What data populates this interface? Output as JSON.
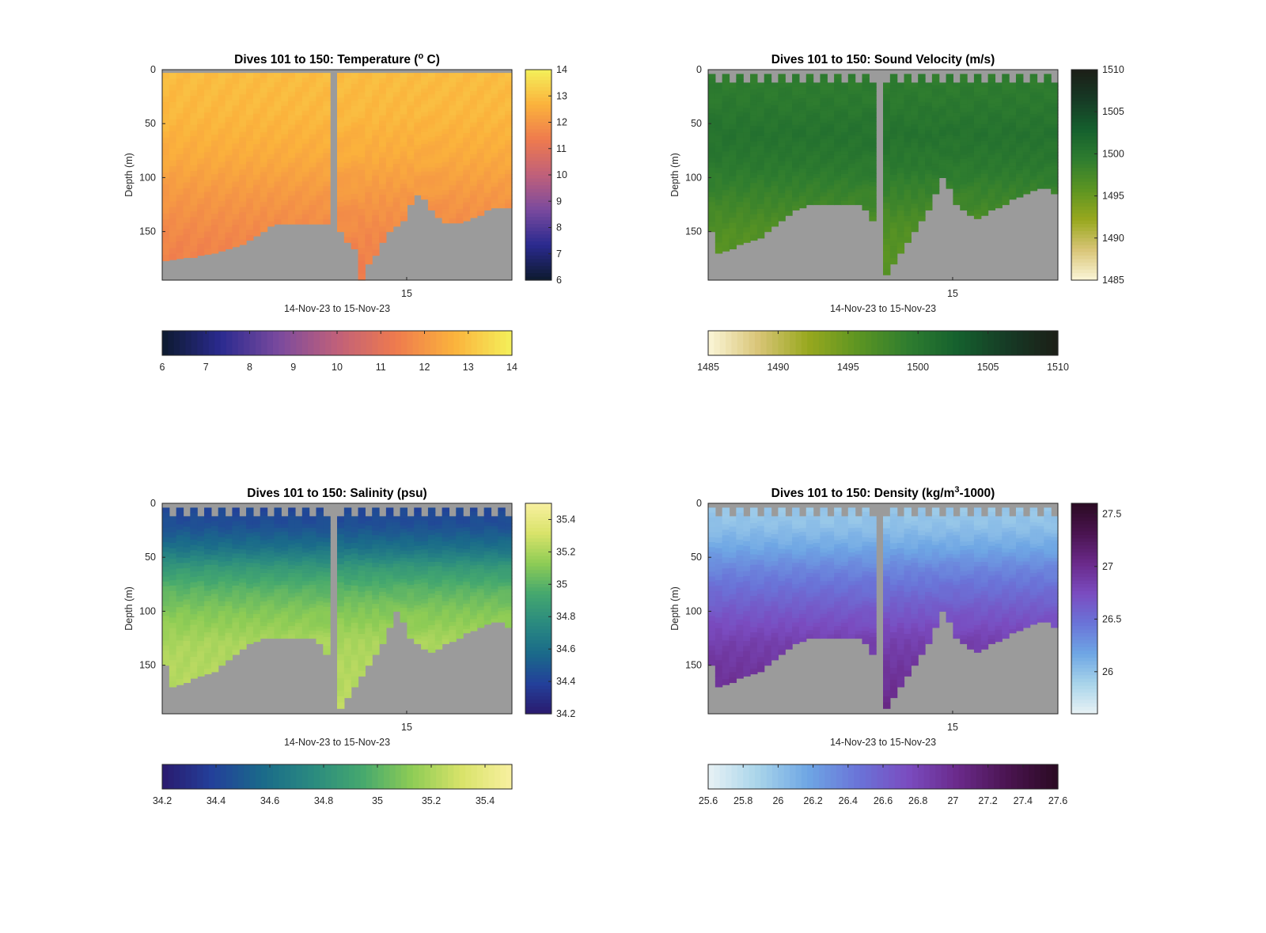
{
  "chart_data": [
    {
      "type": "heatmap",
      "title": "Dives 101 to 150: Temperature (",
      "title_sup": "o",
      "title_tail": " C)",
      "xlabel": "14-Nov-23 to 15-Nov-23",
      "ylabel": "Depth (m)",
      "x_tick_labels": [
        "15"
      ],
      "y_ticks": [
        0,
        50,
        100,
        150
      ],
      "ylim": [
        195,
        0
      ],
      "clim": [
        6,
        14
      ],
      "colormap": [
        "#0d1a2e",
        "#2a2a8f",
        "#7a4a9e",
        "#c0607a",
        "#ee7a4e",
        "#fbb23c",
        "#f4f05a"
      ],
      "colorbar_ticks_vertical": [
        6,
        7,
        8,
        9,
        10,
        11,
        12,
        13,
        14
      ],
      "colorbar_ticks_horizontal": [
        6,
        7,
        8,
        9,
        10,
        11,
        12,
        13,
        14
      ],
      "dives": 50,
      "gap_dive": 24,
      "bottom_depth_m": [
        177,
        176,
        175,
        174,
        174,
        172,
        171,
        170,
        168,
        166,
        164,
        162,
        158,
        154,
        150,
        145,
        143,
        143,
        143,
        143,
        143,
        143,
        143,
        143,
        143,
        150,
        160,
        166,
        195,
        180,
        172,
        160,
        150,
        145,
        140,
        125,
        116,
        120,
        130,
        137,
        142,
        142,
        142,
        140,
        137,
        135,
        130,
        128,
        128,
        128
      ],
      "top_gap_m": [
        3,
        3,
        3,
        3,
        3,
        3,
        3,
        3,
        3,
        3,
        3,
        3,
        3,
        3,
        3,
        3,
        3,
        3,
        3,
        3,
        3,
        3,
        3,
        3,
        3,
        3,
        3,
        3,
        3,
        3,
        3,
        3,
        3,
        3,
        3,
        3,
        3,
        3,
        3,
        3,
        3,
        3,
        3,
        3,
        3,
        3,
        3,
        3,
        3,
        3
      ],
      "profile_depth_m": [
        0,
        40,
        80,
        120,
        160,
        195
      ],
      "profile_values": [
        12.9,
        12.8,
        12.5,
        12.0,
        11.6,
        11.4
      ]
    },
    {
      "type": "heatmap",
      "title": "Dives 101 to 150: Sound Velocity (m/s)",
      "xlabel": "14-Nov-23 to 15-Nov-23",
      "ylabel": "Depth (m)",
      "x_tick_labels": [
        "15"
      ],
      "y_ticks": [
        0,
        50,
        100,
        150
      ],
      "ylim": [
        195,
        0
      ],
      "clim": [
        1485,
        1510
      ],
      "colormap": [
        "#fbf6d8",
        "#d9c577",
        "#98a81e",
        "#5c9522",
        "#2f7d2f",
        "#15602e",
        "#163a25",
        "#1c1e17"
      ],
      "colorbar_ticks_vertical": [
        1485,
        1490,
        1495,
        1500,
        1505,
        1510
      ],
      "colorbar_ticks_horizontal": [
        1485,
        1490,
        1495,
        1500,
        1505,
        1510
      ],
      "dives": 50,
      "gap_dive": 24,
      "bottom_depth_m": [
        150,
        170,
        168,
        166,
        162,
        160,
        158,
        156,
        150,
        145,
        140,
        135,
        130,
        128,
        125,
        125,
        125,
        125,
        125,
        125,
        125,
        125,
        130,
        140,
        160,
        190,
        180,
        170,
        160,
        150,
        140,
        130,
        115,
        100,
        110,
        125,
        130,
        135,
        138,
        135,
        130,
        128,
        125,
        120,
        118,
        115,
        112,
        110,
        110,
        115
      ],
      "top_gap_m": [
        4,
        12,
        4,
        12,
        4,
        12,
        4,
        12,
        4,
        12,
        4,
        12,
        4,
        12,
        4,
        12,
        4,
        12,
        4,
        12,
        4,
        12,
        4,
        12,
        4,
        12,
        4,
        12,
        4,
        12,
        4,
        12,
        4,
        12,
        4,
        12,
        4,
        12,
        4,
        12,
        4,
        12,
        4,
        12,
        4,
        12,
        4,
        12,
        4,
        12
      ],
      "profile_depth_m": [
        0,
        30,
        60,
        90,
        120,
        150,
        195
      ],
      "profile_values": [
        1499.2,
        1499.8,
        1500.6,
        1499.8,
        1498.2,
        1496.5,
        1495.8
      ]
    },
    {
      "type": "heatmap",
      "title": "Dives 101 to 150: Salinity (psu)",
      "xlabel": "14-Nov-23 to 15-Nov-23",
      "ylabel": "Depth (m)",
      "x_tick_labels": [
        "15"
      ],
      "y_ticks": [
        0,
        50,
        100,
        150
      ],
      "ylim": [
        195,
        0
      ],
      "clim": [
        34.2,
        35.5
      ],
      "colormap": [
        "#2a1a6e",
        "#23409a",
        "#1a6a8a",
        "#2a8a80",
        "#45a86e",
        "#8ecc55",
        "#d9e36a",
        "#f8f0a0"
      ],
      "colorbar_ticks_vertical": [
        34.2,
        34.4,
        34.6,
        34.8,
        35,
        35.2,
        35.4
      ],
      "colorbar_ticks_horizontal": [
        34.2,
        34.4,
        34.6,
        34.8,
        35,
        35.2,
        35.4
      ],
      "dives": 50,
      "gap_dive": 24,
      "bottom_depth_m": [
        150,
        170,
        168,
        166,
        162,
        160,
        158,
        156,
        150,
        145,
        140,
        135,
        130,
        128,
        125,
        125,
        125,
        125,
        125,
        125,
        125,
        125,
        130,
        140,
        160,
        190,
        180,
        170,
        160,
        150,
        140,
        130,
        115,
        100,
        110,
        125,
        130,
        135,
        138,
        135,
        130,
        128,
        125,
        120,
        118,
        115,
        112,
        110,
        110,
        115
      ],
      "top_gap_m": [
        4,
        12,
        4,
        12,
        4,
        12,
        4,
        12,
        4,
        12,
        4,
        12,
        4,
        12,
        4,
        12,
        4,
        12,
        4,
        12,
        4,
        12,
        4,
        12,
        4,
        12,
        4,
        12,
        4,
        12,
        4,
        12,
        4,
        12,
        4,
        12,
        4,
        12,
        4,
        12,
        4,
        12,
        4,
        12,
        4,
        12,
        4,
        12,
        4,
        12
      ],
      "profile_depth_m": [
        0,
        20,
        40,
        60,
        80,
        100,
        130,
        195
      ],
      "profile_values": [
        34.4,
        34.45,
        34.6,
        34.85,
        35.0,
        35.1,
        35.2,
        35.25
      ]
    },
    {
      "type": "heatmap",
      "title": "Dives 101 to 150: Density (kg/m",
      "title_sup": "3",
      "title_tail": "-1000)",
      "xlabel": "14-Nov-23 to 15-Nov-23",
      "ylabel": "Depth (m)",
      "x_tick_labels": [
        "15"
      ],
      "y_ticks": [
        0,
        50,
        100,
        150
      ],
      "ylim": [
        195,
        0
      ],
      "clim": [
        25.6,
        27.6
      ],
      "colormap": [
        "#e8f2f5",
        "#a8d4ea",
        "#6ea6e4",
        "#6a74d8",
        "#7a4cc0",
        "#6a2a8a",
        "#4a1450",
        "#2a0a22"
      ],
      "colorbar_ticks_vertical": [
        26,
        26.5,
        27,
        27.5
      ],
      "colorbar_ticks_horizontal": [
        25.6,
        25.8,
        26,
        26.2,
        26.4,
        26.6,
        26.8,
        27,
        27.2,
        27.4,
        27.6
      ],
      "dives": 50,
      "gap_dive": 24,
      "bottom_depth_m": [
        150,
        170,
        168,
        166,
        162,
        160,
        158,
        156,
        150,
        145,
        140,
        135,
        130,
        128,
        125,
        125,
        125,
        125,
        125,
        125,
        125,
        125,
        130,
        140,
        160,
        190,
        180,
        170,
        160,
        150,
        140,
        130,
        115,
        100,
        110,
        125,
        130,
        135,
        138,
        135,
        130,
        128,
        125,
        120,
        118,
        115,
        112,
        110,
        110,
        115
      ],
      "top_gap_m": [
        4,
        12,
        4,
        12,
        4,
        12,
        4,
        12,
        4,
        12,
        4,
        12,
        4,
        12,
        4,
        12,
        4,
        12,
        4,
        12,
        4,
        12,
        4,
        12,
        4,
        12,
        4,
        12,
        4,
        12,
        4,
        12,
        4,
        12,
        4,
        12,
        4,
        12,
        4,
        12,
        4,
        12,
        4,
        12,
        4,
        12,
        4,
        12,
        4,
        12
      ],
      "profile_depth_m": [
        0,
        20,
        40,
        60,
        80,
        100,
        130,
        160,
        195
      ],
      "profile_values": [
        25.95,
        26.0,
        26.15,
        26.35,
        26.5,
        26.65,
        26.85,
        26.95,
        27.05
      ]
    }
  ]
}
